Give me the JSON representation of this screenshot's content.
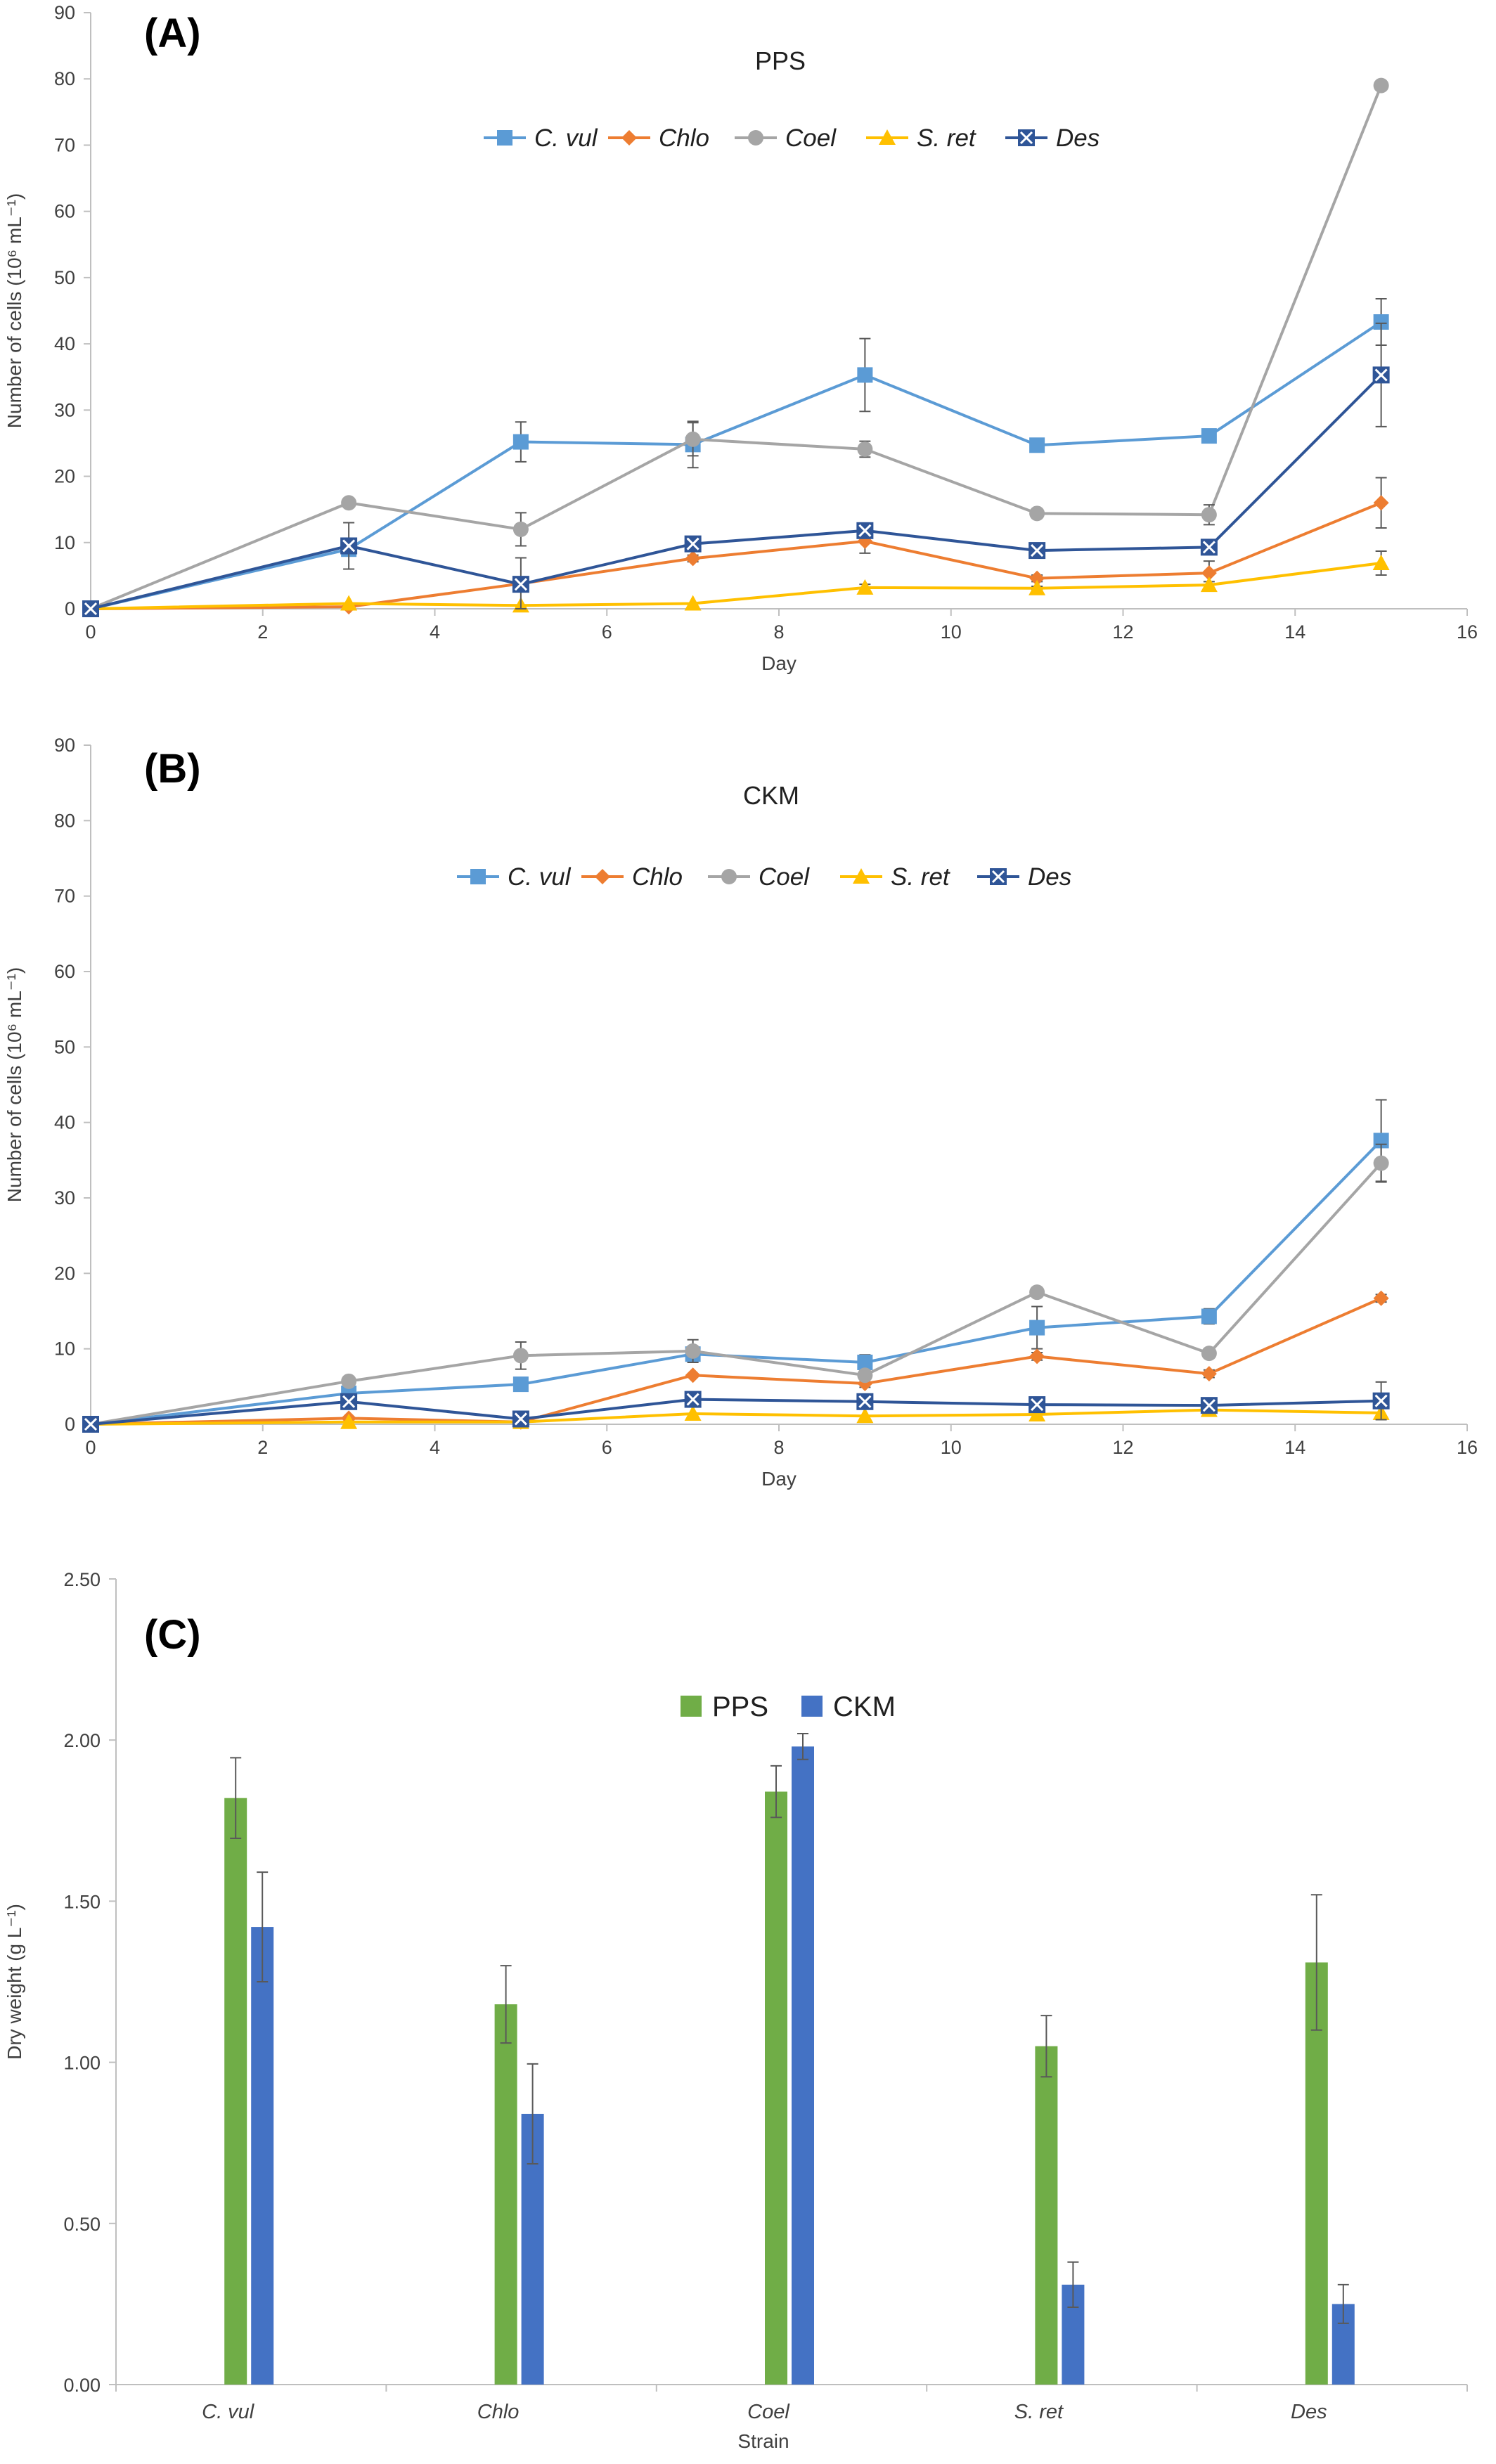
{
  "figure": {
    "panels": [
      "(A)",
      "(B)",
      "(C)"
    ]
  },
  "colors": {
    "C. vul": "#5B9BD5",
    "Chlo": "#ED7D31",
    "Coel": "#A5A5A5",
    "S. ret": "#FFC000",
    "Des": "#2F5597",
    "PPS": "#70AD47",
    "CKM": "#4472C4",
    "axis": "#BFBFBF",
    "error": "#595959"
  },
  "chart_data": [
    {
      "panel": "(A)",
      "type": "line",
      "title": "PPS",
      "xlabel": "Day",
      "ylabel": "Number of cells (10⁶ mL⁻¹)",
      "xlim": [
        0,
        16
      ],
      "ylim": [
        0,
        90
      ],
      "xticks": [
        0,
        2,
        4,
        6,
        8,
        10,
        12,
        14,
        16
      ],
      "yticks": [
        0,
        10,
        20,
        30,
        40,
        50,
        60,
        70,
        80,
        90
      ],
      "legend": "top-center",
      "x": [
        0,
        3,
        5,
        7,
        9,
        11,
        13,
        15
      ],
      "series": [
        {
          "name": "C. vul",
          "marker": "square",
          "values": [
            0,
            9,
            25.2,
            24.8,
            35.3,
            24.7,
            26.1,
            43.3
          ],
          "err": [
            0,
            0,
            3,
            3.5,
            5.5,
            0.5,
            1,
            3.5
          ]
        },
        {
          "name": "Chlo",
          "marker": "diamond",
          "values": [
            0,
            0.3,
            3.8,
            7.6,
            10.2,
            4.6,
            5.4,
            16
          ],
          "err": [
            0,
            0,
            0.5,
            0.5,
            1.8,
            0.5,
            1.8,
            3.8
          ]
        },
        {
          "name": "Coel",
          "marker": "circle",
          "values": [
            0,
            16,
            12,
            25.6,
            24.1,
            14.4,
            14.2,
            79
          ],
          "err": [
            0,
            0,
            2.5,
            2.5,
            1.2,
            0.5,
            1.5,
            0.5
          ]
        },
        {
          "name": "S. ret",
          "marker": "triangle",
          "values": [
            0,
            0.8,
            0.5,
            0.8,
            3.2,
            3.1,
            3.6,
            6.9
          ],
          "err": [
            0,
            0,
            0,
            0,
            0.5,
            0.3,
            0.5,
            1.8
          ]
        },
        {
          "name": "Des",
          "marker": "xsquare",
          "values": [
            0,
            9.5,
            3.7,
            9.8,
            11.8,
            8.8,
            9.3,
            35.3
          ],
          "err": [
            0,
            3.5,
            4,
            0.5,
            0.5,
            0.5,
            0.5,
            7.8
          ]
        }
      ]
    },
    {
      "panel": "(B)",
      "type": "line",
      "title": "CKM",
      "xlabel": "Day",
      "ylabel": "Number of cells (10⁶ mL⁻¹)",
      "xlim": [
        0,
        16
      ],
      "ylim": [
        0,
        90
      ],
      "xticks": [
        0,
        2,
        4,
        6,
        8,
        10,
        12,
        14,
        16
      ],
      "yticks": [
        0,
        10,
        20,
        30,
        40,
        50,
        60,
        70,
        80,
        90
      ],
      "legend": "top-center",
      "x": [
        0,
        3,
        5,
        7,
        9,
        11,
        13,
        15
      ],
      "series": [
        {
          "name": "C. vul",
          "marker": "square",
          "values": [
            0,
            4.1,
            5.3,
            9.3,
            8.2,
            12.8,
            14.3,
            37.6
          ],
          "err": [
            0,
            0,
            0,
            1,
            1,
            2.8,
            1,
            5.4
          ]
        },
        {
          "name": "Chlo",
          "marker": "diamond",
          "values": [
            0,
            0.8,
            0.3,
            6.5,
            5.4,
            9,
            6.7,
            16.7
          ],
          "err": [
            0,
            0,
            0,
            0,
            0.5,
            0.5,
            0.5,
            0.5
          ]
        },
        {
          "name": "Coel",
          "marker": "circle",
          "values": [
            0,
            5.7,
            9.1,
            9.7,
            6.5,
            17.5,
            9.4,
            34.6
          ],
          "err": [
            0,
            0,
            1.8,
            1.5,
            0.5,
            0.5,
            0.5,
            2.5
          ]
        },
        {
          "name": "S. ret",
          "marker": "triangle",
          "values": [
            0,
            0.3,
            0.3,
            1.4,
            1.1,
            1.3,
            1.9,
            1.5
          ],
          "err": [
            0,
            0,
            0,
            0,
            0,
            0,
            0,
            0
          ]
        },
        {
          "name": "Des",
          "marker": "xsquare",
          "values": [
            0,
            3,
            0.7,
            3.3,
            3,
            2.6,
            2.5,
            3.1
          ],
          "err": [
            0,
            0,
            0,
            0,
            0,
            0,
            0,
            2.5
          ]
        }
      ]
    },
    {
      "panel": "(C)",
      "type": "bar",
      "title": "",
      "xlabel": "Strain",
      "ylabel": "Dry weight (g L⁻¹)",
      "ylim": [
        0,
        2.5
      ],
      "yticks": [
        "0.00",
        "0.50",
        "1.00",
        "1.50",
        "2.00",
        "2.50"
      ],
      "legend": "top-center",
      "categories": [
        "C. vul",
        "Chlo",
        "Coel",
        "S. ret",
        "Des"
      ],
      "series": [
        {
          "name": "PPS",
          "values": [
            1.82,
            1.18,
            1.84,
            1.05,
            1.31
          ],
          "err": [
            0.125,
            0.12,
            0.08,
            0.095,
            0.21
          ]
        },
        {
          "name": "CKM",
          "values": [
            1.42,
            0.84,
            1.98,
            0.31,
            0.25
          ],
          "err": [
            0.17,
            0.155,
            0.04,
            0.07,
            0.06
          ]
        }
      ]
    }
  ]
}
